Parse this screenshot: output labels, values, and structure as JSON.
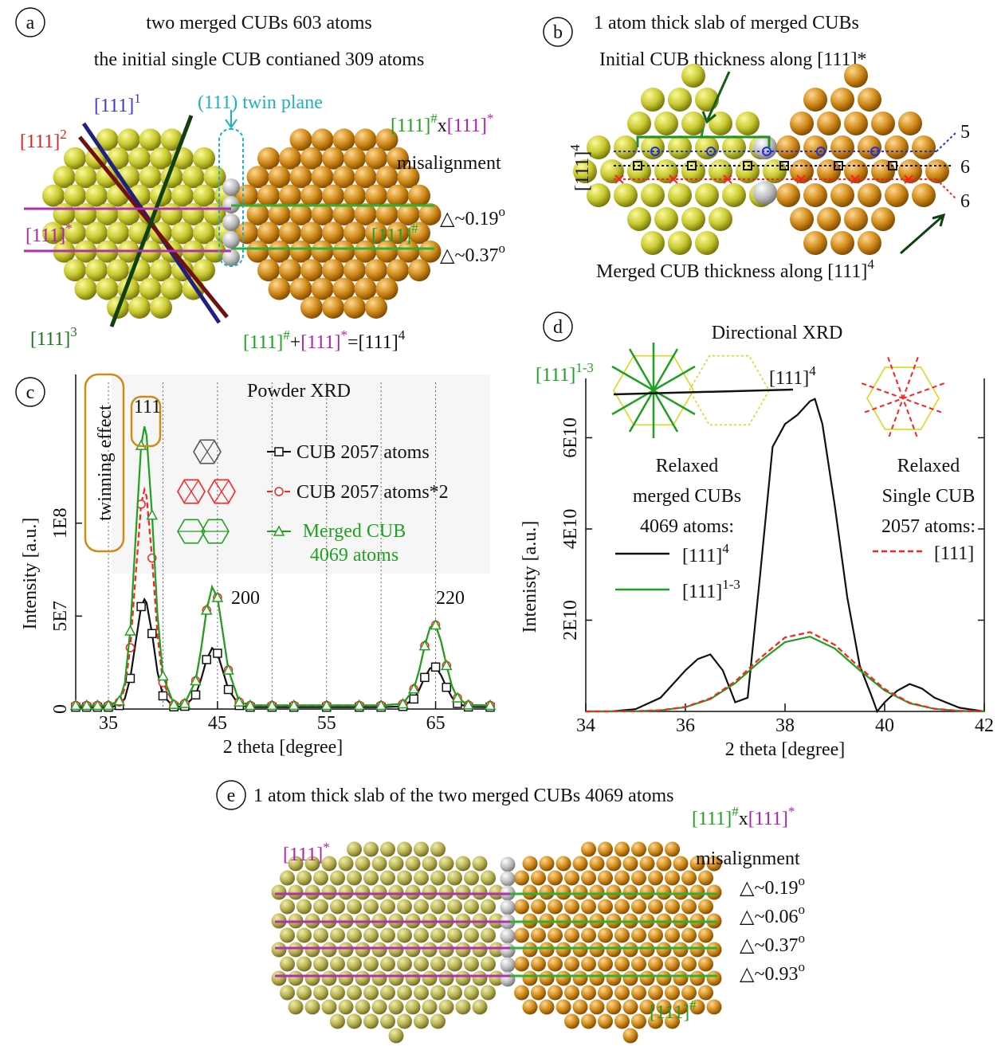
{
  "panels": {
    "a": {
      "label": "a",
      "title_lines": [
        "two merged CUBs 603 atoms",
        "the initial single CUB contianed 309 atoms"
      ],
      "dir1": [
        {
          "text": "[111]",
          "sup": "1",
          "color": "#3a3ad0"
        }
      ],
      "dir2": [
        {
          "text": "[111]",
          "sup": "2",
          "color": "#e02020"
        }
      ],
      "dir3": [
        {
          "text": "[111]",
          "sup": "3",
          "color": "#207020"
        }
      ],
      "dir_star": [
        {
          "text": "[111]",
          "sup": "*",
          "color": "#b020b0"
        }
      ],
      "twin_plane": [
        {
          "text": "(111) twin plane",
          "color": "#20b0c0"
        }
      ],
      "cross": [
        {
          "text": "[111]",
          "sup": "#",
          "color": "#20a020"
        },
        {
          "text": "x"
        },
        {
          "text": "[111]",
          "sup": "*",
          "color": "#b020b0"
        }
      ],
      "misalignment": "misalignment",
      "deltas": [
        [
          {
            "text": "△~0.19",
            "sup": "o"
          }
        ],
        [
          {
            "text": "△~0.37",
            "sup": "o"
          }
        ]
      ],
      "dir_hash": [
        {
          "text": "[111]",
          "sup": "#",
          "color": "#20a020"
        }
      ],
      "sum": [
        {
          "text": "[111]",
          "sup": "#",
          "color": "#20a020"
        },
        {
          "text": "+"
        },
        {
          "text": "[111]",
          "sup": "*",
          "color": "#b020b0"
        },
        {
          "text": "=[111]",
          "sup": "4"
        }
      ]
    },
    "b": {
      "label": "b",
      "title": "1 atom thick slab of merged CUBs",
      "initial": "Initial CUB thickness along [111]*",
      "axis": [
        {
          "text": "[111]",
          "sup": "4"
        }
      ],
      "layers": [
        "5",
        "6",
        "6"
      ],
      "merged": [
        {
          "text": "Merged CUB thickness along [111]",
          "sup": "4"
        }
      ]
    },
    "e": {
      "label": "e",
      "title": "1 atom thick slab of the two merged CUBs 4069 atoms",
      "dir_star": [
        {
          "text": "[111]",
          "sup": "*",
          "color": "#b020b0"
        }
      ],
      "cross": [
        {
          "text": "[111]",
          "sup": "#",
          "color": "#20a020"
        },
        {
          "text": "x"
        },
        {
          "text": "[111]",
          "sup": "*",
          "color": "#b020b0"
        }
      ],
      "misalignment": "misalignment",
      "deltas": [
        [
          {
            "text": "△~0.19",
            "sup": "o"
          }
        ],
        [
          {
            "text": "△~0.06",
            "sup": "o"
          }
        ],
        [
          {
            "text": "△~0.37",
            "sup": "o"
          }
        ],
        [
          {
            "text": "△~0.93",
            "sup": "o"
          }
        ]
      ],
      "dir_hash": [
        {
          "text": "[111]",
          "sup": "#",
          "color": "#20a020"
        }
      ]
    }
  },
  "chart_data": [
    {
      "type": "line",
      "label": "c",
      "title": "Powder XRD",
      "x_label": "2 theta [degree]",
      "y_label": "Intensity [a.u.]",
      "peak_labels": [
        "111",
        "200",
        "220"
      ],
      "twinning": "twinning effect",
      "xlim": [
        32,
        70
      ],
      "ylim": [
        0,
        180000000.0
      ],
      "xticks": [
        35,
        45,
        55,
        65
      ],
      "yticks": [
        0,
        {
          "value": 50000000.0,
          "label": "5E7"
        },
        {
          "value": 100000000.0,
          "label": "1E8"
        }
      ],
      "xgrid": [
        35,
        40,
        45,
        50,
        55,
        60,
        65
      ],
      "x": [
        32,
        33,
        34,
        35,
        36,
        36.5,
        37,
        37.5,
        38,
        38.3,
        38.5,
        39,
        39.5,
        40,
        41,
        42,
        43,
        43.5,
        44,
        44.5,
        45,
        45.5,
        46,
        47,
        48,
        50,
        52,
        55,
        58,
        60,
        62,
        63,
        63.5,
        64,
        64.5,
        65,
        65.5,
        66,
        66.5,
        67,
        68,
        70
      ],
      "series": [
        {
          "name": "CUB 2057 atoms",
          "color": "#111111",
          "marker": "square",
          "dash": false,
          "values": [
            1000000.0,
            1000000.0,
            1000000.0,
            1000000.0,
            1900000.0,
            5600000.0,
            16500000.0,
            36200000.0,
            55100000.0,
            59000000.0,
            57200000.0,
            40600000.0,
            19900000.0,
            7100000.0,
            1200000.0,
            1500000.0,
            7600000.0,
            16200000.0,
            26600000.0,
            32800000.0,
            30000000.0,
            20400000.0,
            10500000.0,
            1900000.0,
            1000000.0,
            1000000.0,
            1000000.0,
            1000000.0,
            1000000.0,
            1000000.0,
            1400000.0,
            5400000.0,
            10500000.0,
            17000000.0,
            22000000.0,
            22600000.0,
            18200000.0,
            11700000.0,
            6200000.0,
            3000000.0,
            1100000.0,
            1000000.0
          ]
        },
        {
          "name": "CUB 2057 atoms*2",
          "color": "#ff2020",
          "marker": "circle",
          "dash": true,
          "values": [
            2000000.0,
            2000000.0,
            2000000.0,
            2000000.0,
            3800000.0,
            11200000.0,
            33000000.0,
            72400000.0,
            110200000.0,
            118000000.0,
            114400000.0,
            81200000.0,
            39800000.0,
            14200000.0,
            2400000.0,
            3000000.0,
            15200000.0,
            32400000.0,
            53200000.0,
            65600000.0,
            60000000.0,
            40800000.0,
            21000000.0,
            3800000.0,
            2000000.0,
            2000000.0,
            2000000.0,
            2000000.0,
            2000000.0,
            2000000.0,
            2800000.0,
            10800000.0,
            21000000.0,
            34000000.0,
            44000000.0,
            45200000.0,
            36400000.0,
            23400000.0,
            12400000.0,
            6000000.0,
            2200000.0,
            2000000.0
          ]
        },
        {
          "name": "Merged CUB 4069 atoms",
          "color": "#20a020",
          "marker": "triangle",
          "dash": false,
          "values": [
            2000000.0,
            2000000.0,
            2000000.0,
            2000000.0,
            4400000.0,
            14000000.0,
            42000000.0,
            93000000.0,
            141800000.0,
            152000000.0,
            147400000.0,
            104300000.0,
            50800000.0,
            17800000.0,
            2500000.0,
            3000000.0,
            15200000.0,
            32400000.0,
            53200000.0,
            65600000.0,
            60000000.0,
            40800000.0,
            21000000.0,
            3800000.0,
            2000000.0,
            2000000.0,
            2000000.0,
            2000000.0,
            2000000.0,
            2000000.0,
            2800000.0,
            10800000.0,
            21000000.0,
            34000000.0,
            44000000.0,
            45200000.0,
            36400000.0,
            23400000.0,
            12400000.0,
            6000000.0,
            2200000.0,
            2000000.0
          ]
        }
      ]
    },
    {
      "type": "line",
      "label": "d",
      "title": "Directional XRD",
      "x_label": "2 theta [degree]",
      "y_label": "Intenisty [a.u.]",
      "xlim": [
        34,
        42
      ],
      "ylim": [
        0,
        73000000000.0
      ],
      "xticks": [
        34,
        36,
        38,
        40,
        42
      ],
      "yticks": [
        {
          "value": 20000000000.0,
          "label": "2E10"
        },
        {
          "value": 40000000000.0,
          "label": "4E10"
        },
        {
          "value": 60000000000.0,
          "label": "6E10"
        }
      ],
      "inset_labels": [
        [
          {
            "text": "[111]",
            "sup": "1-3",
            "color": "#20a020"
          }
        ],
        [
          {
            "text": "[111]",
            "sup": "4"
          }
        ]
      ],
      "legend_groups": [
        [
          "Relaxed",
          "merged CUBs",
          "4069 atoms:"
        ],
        [
          "Relaxed",
          "Single CUB",
          "2057 atoms:"
        ]
      ],
      "series": [
        {
          "name": "[111]",
          "name_sup": "4",
          "color": "#111111",
          "dash": false,
          "x": [
            34,
            34.5,
            35,
            35.5,
            36,
            36.25,
            36.5,
            36.75,
            37,
            37.25,
            37.5,
            37.75,
            38,
            38.25,
            38.5,
            38.6,
            38.75,
            39,
            39.25,
            39.5,
            39.75,
            39.85,
            40,
            40.25,
            40.5,
            40.75,
            41,
            41.5,
            42
          ],
          "values": [
            0,
            0,
            500000000.0,
            3000000000.0,
            9000000000.0,
            11500000000.0,
            12500000000.0,
            9000000000.0,
            2000000000.0,
            3000000000.0,
            30000000000.0,
            58000000000.0,
            63000000000.0,
            65000000000.0,
            68000000000.0,
            68500000000.0,
            63000000000.0,
            45000000000.0,
            25000000000.0,
            10000000000.0,
            3000000000.0,
            0,
            2000000000.0,
            4500000000.0,
            6000000000.0,
            5000000000.0,
            3000000000.0,
            800000000.0,
            0
          ]
        },
        {
          "name": "[111]",
          "name_sup": "1-3",
          "color": "#20a020",
          "dash": false,
          "x": [
            34,
            34.5,
            35,
            35.5,
            36,
            36.5,
            37,
            37.5,
            38,
            38.5,
            39,
            39.5,
            40,
            40.5,
            41,
            41.5,
            42
          ],
          "values": [
            0,
            10000000.0,
            50000000.0,
            250000000.0,
            920000000.0,
            2700000000.0,
            6200000000.0,
            11000000000.0,
            15200000000.0,
            16400000000.0,
            13800000000.0,
            9000000000.0,
            4600000000.0,
            1800000000.0,
            560000000.0,
            130000000.0,
            20000000.0
          ]
        },
        {
          "name": "[111]",
          "color": "#ff2020",
          "dash": true,
          "x": [
            34,
            34.5,
            35,
            35.5,
            36,
            36.5,
            37,
            37.5,
            38,
            38.5,
            39,
            39.5,
            40,
            40.5,
            41,
            41.5,
            42
          ],
          "values": [
            0,
            10000000.0,
            50000000.0,
            260000000.0,
            980000000.0,
            2870000000.0,
            6560000000.0,
            11700000000.0,
            16200000000.0,
            17400000000.0,
            14600000000.0,
            9600000000.0,
            4900000000.0,
            1900000000.0,
            600000000.0,
            140000000.0,
            30000000.0
          ]
        }
      ]
    }
  ]
}
